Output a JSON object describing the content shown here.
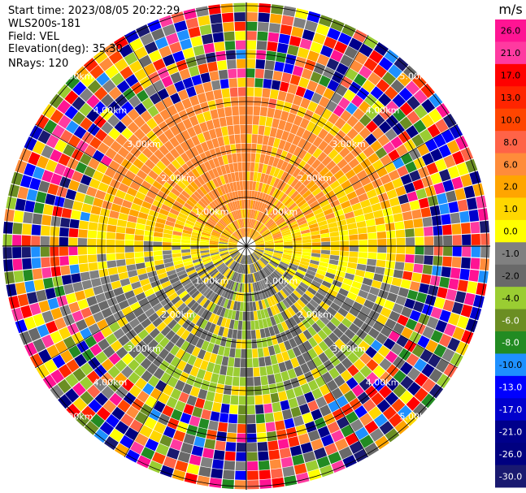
{
  "header": {
    "start_time": "Start time: 2023/08/05 20:22:29",
    "instrument": "WLS200s-181",
    "field": "Field: VEL",
    "elevation": "Elevation(deg): 35.30",
    "nrays": "NRays: 120"
  },
  "chart_data": {
    "type": "ppi",
    "field": "VEL",
    "n_rays": 120,
    "range_ring_labels": [
      "1.00km",
      "2.00km",
      "3.00km",
      "4.00km",
      "5.00km"
    ],
    "range_ring_values_km": [
      1,
      2,
      3,
      4,
      5
    ],
    "colorbar": {
      "unit": "m/s",
      "tick_labels": [
        "26.0",
        "21.0",
        "17.0",
        "13.0",
        "10.0",
        "8.0",
        "6.0",
        "2.0",
        "1.0",
        "0.0",
        "-1.0",
        "-2.0",
        "-4.0",
        "-6.0",
        "-8.0",
        "-10.0",
        "-13.0",
        "-17.0",
        "-21.0",
        "-26.0",
        "-30.0"
      ],
      "colors": [
        "#ff1493",
        "#ff3aa0",
        "#ff0000",
        "#ff2400",
        "#ff4500",
        "#ff6347",
        "#ff8c3a",
        "#ffa500",
        "#ffd700",
        "#ffff00",
        "#808080",
        "#696969",
        "#9acd32",
        "#6b8e23",
        "#228b22",
        "#1e90ff",
        "#0000ff",
        "#0000cd",
        "#00008b",
        "#000080",
        "#191970"
      ]
    }
  }
}
